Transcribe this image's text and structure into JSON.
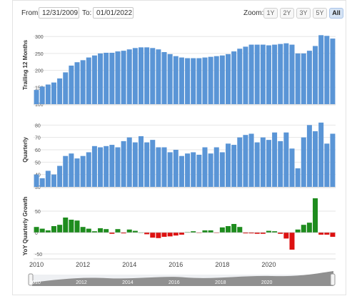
{
  "toolbar": {
    "from_label": "From:",
    "from_date": "12/31/2009",
    "to_label": "To:",
    "to_date": "01/01/2022",
    "zoom_label": "Zoom:",
    "zoom_buttons": [
      "1Y",
      "2Y",
      "3Y",
      "5Y",
      "All"
    ],
    "zoom_active": "All"
  },
  "colors": {
    "bar": "#5a95d6",
    "positive": "#1e8c1e",
    "negative": "#dd1111"
  },
  "chart_data": [
    {
      "type": "bar",
      "ylabel": "Trailing 12 Months",
      "ylim": [
        100,
        330
      ],
      "yticks": [
        "100",
        "150",
        "200",
        "250",
        "300"
      ],
      "values": [
        142,
        152,
        158,
        164,
        176,
        194,
        214,
        224,
        230,
        238,
        244,
        250,
        252,
        252,
        256,
        258,
        262,
        266,
        268,
        268,
        266,
        262,
        254,
        248,
        242,
        238,
        236,
        236,
        236,
        238,
        240,
        242,
        244,
        248,
        256,
        264,
        270,
        276,
        276,
        276,
        274,
        276,
        278,
        280,
        276,
        250,
        250,
        258,
        272,
        304,
        302,
        294
      ]
    },
    {
      "type": "bar",
      "ylabel": "Quarterly",
      "ylim": [
        30,
        90
      ],
      "yticks": [
        "30",
        "40",
        "50",
        "60",
        "70",
        "80"
      ],
      "values": [
        40,
        37,
        43,
        40,
        47,
        55,
        57,
        53,
        55,
        58,
        63,
        62,
        63,
        64,
        62,
        67,
        70,
        66,
        71,
        66,
        68,
        62,
        62,
        58,
        60,
        55,
        57,
        58,
        56,
        62,
        57,
        62,
        58,
        65,
        64,
        70,
        72,
        73,
        66,
        70,
        68,
        74,
        67,
        74,
        61,
        45,
        70,
        80,
        75,
        82,
        65,
        73
      ]
    },
    {
      "type": "bar",
      "ylabel": "YoY Quarterly Growth",
      "ylim": [
        -60,
        90
      ],
      "yticks": [
        "-50",
        "0",
        "50"
      ],
      "x_tick_labels": [
        "2010",
        "2012",
        "2014",
        "2016",
        "2018",
        "2020"
      ],
      "values": [
        13,
        9,
        5,
        15,
        18,
        35,
        30,
        28,
        13,
        9,
        3,
        10,
        8,
        -3,
        8,
        -2,
        7,
        4,
        0,
        -4,
        -12,
        -13,
        -10,
        -9,
        -7,
        -5,
        1,
        3,
        -1,
        5,
        5,
        -1,
        12,
        15,
        20,
        13,
        -2,
        -2,
        -3,
        -3,
        4,
        3,
        -3,
        -14,
        -40,
        7,
        18,
        23,
        80,
        -5,
        -5,
        -10
      ]
    }
  ],
  "navigator": {
    "x_tick_labels": [
      "2010",
      "2012",
      "2014",
      "2016",
      "2018",
      "2020"
    ]
  }
}
